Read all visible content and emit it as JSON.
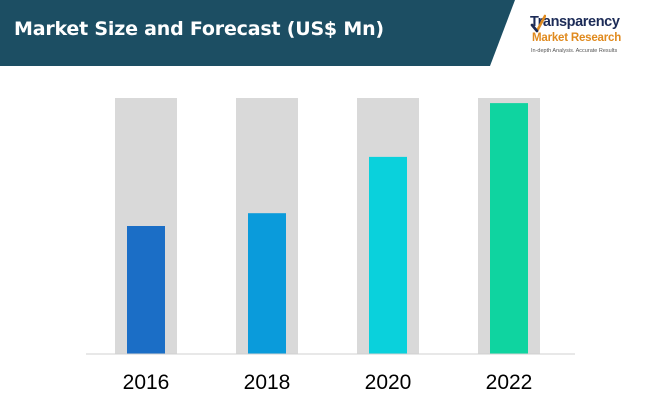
{
  "header": {
    "title": "Market Size and Forecast (US$ Mn)",
    "background_color": "#1c4e63"
  },
  "logo": {
    "line1": "Transparency",
    "line2": "Market Research",
    "line3": "In-depth Analysis. Accurate Results",
    "check_icon": "checkmark-icon"
  },
  "chart_data": {
    "type": "bar",
    "title": "Market Size and Forecast (US$ Mn)",
    "categories": [
      "2016",
      "2018",
      "2020",
      "2022"
    ],
    "values": [
      50,
      55,
      77,
      98
    ],
    "ylim": [
      0,
      100
    ],
    "xlabel": "",
    "ylabel": "",
    "grid": false,
    "legend": "none",
    "bar_colors": [
      "#1b6ec6",
      "#0a9bdb",
      "#0ad1dc",
      "#0fd4a0"
    ],
    "background_bar_color": "#d9d9d9"
  }
}
